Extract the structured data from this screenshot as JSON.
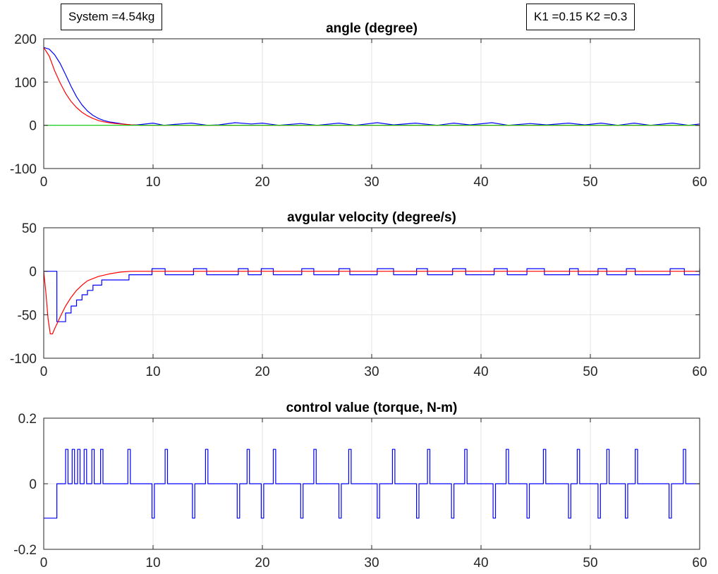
{
  "annotations": {
    "system": "System =4.54kg",
    "gains": "K1 =0.15 K2 =0.3"
  },
  "colors": {
    "blue": "#0000ff",
    "red": "#ff0000",
    "green": "#00cc00",
    "grid": "#e3e3e3"
  },
  "chart_data": [
    {
      "type": "line",
      "title": "angle (degree)",
      "xlim": [
        0,
        60
      ],
      "ylim": [
        -100,
        200
      ],
      "xticks": [
        0,
        10,
        20,
        30,
        40,
        50,
        60
      ],
      "yticks": [
        -100,
        0,
        100,
        200
      ],
      "grid": true,
      "series": [
        {
          "color": "#0000ff",
          "x": [
            0,
            0.5,
            1,
            1.5,
            2,
            2.5,
            3,
            3.5,
            4,
            4.5,
            5,
            5.5,
            6,
            6.5,
            7,
            7.5,
            8,
            8.5,
            9,
            10,
            11,
            12,
            13.5,
            15,
            16,
            17.5,
            19,
            20,
            21.5,
            23.5,
            25,
            27,
            28.5,
            30.5,
            32,
            34,
            36,
            37.5,
            39,
            41,
            42.5,
            44.5,
            46,
            48,
            49.5,
            51,
            52.5,
            54,
            55.5,
            57.5,
            59,
            60
          ],
          "y": [
            180,
            176,
            163,
            143,
            117,
            90,
            66,
            47,
            33,
            23,
            16,
            11,
            8,
            6,
            4,
            2,
            1,
            1,
            2,
            5,
            0,
            2,
            5,
            0,
            1,
            6,
            3,
            5,
            0,
            4,
            0,
            5,
            0,
            6,
            1,
            5,
            0,
            5,
            1,
            6,
            0,
            4,
            1,
            5,
            1,
            5,
            0,
            5,
            0,
            5,
            0,
            3
          ]
        },
        {
          "color": "#ff0000",
          "x": [
            0,
            0.5,
            1,
            1.5,
            2,
            2.5,
            3,
            3.5,
            4,
            4.5,
            5,
            5.5,
            6,
            6.5,
            7,
            7.5,
            8,
            9,
            10,
            60
          ],
          "y": [
            180,
            160,
            126,
            98,
            74,
            55,
            41,
            30,
            22,
            16,
            11,
            8,
            6,
            4,
            3,
            2,
            1,
            0,
            0,
            0
          ]
        },
        {
          "color": "#00cc00",
          "x": [
            0,
            60
          ],
          "y": [
            0,
            0
          ]
        }
      ]
    },
    {
      "type": "line",
      "title": "avgular velocity (degree/s)",
      "xlim": [
        0,
        60
      ],
      "ylim": [
        -100,
        50
      ],
      "xticks": [
        0,
        10,
        20,
        30,
        40,
        50,
        60
      ],
      "yticks": [
        -100,
        -50,
        0,
        50
      ],
      "grid": true,
      "series": [
        {
          "color": "#0000ff",
          "step": true,
          "x": [
            0,
            1.2,
            2.0,
            2.5,
            3.0,
            3.5,
            4.0,
            4.5,
            5.3,
            7.8,
            9.9,
            11.1,
            13.7,
            14.9,
            17.8,
            18.7,
            19.9,
            21.0,
            23.6,
            24.7,
            27.0,
            28.0,
            30.5,
            32.0,
            34.1,
            35.1,
            37.4,
            38.6,
            41.2,
            42.4,
            44.2,
            45.8,
            48.1,
            48.9,
            50.7,
            51.5,
            53.3,
            54.1,
            57.3,
            58.6,
            60
          ],
          "y": [
            0,
            -58,
            -48,
            -40,
            -33,
            -27,
            -22,
            -16,
            -10,
            -4,
            3,
            -4,
            3,
            -4,
            3,
            -4,
            3,
            -4,
            3,
            -4,
            3,
            -4,
            3,
            -4,
            3,
            -4,
            3,
            -4,
            3,
            -4,
            3,
            -4,
            3,
            -4,
            3,
            -4,
            3,
            -4,
            3,
            -4,
            3
          ]
        },
        {
          "color": "#ff0000",
          "x": [
            0,
            0.2,
            0.4,
            0.6,
            0.8,
            1.0,
            1.3,
            1.6,
            2.0,
            2.5,
            3.0,
            3.5,
            4.0,
            5.0,
            6.0,
            7.0,
            8.0,
            10.0,
            60
          ],
          "y": [
            0,
            -25,
            -55,
            -72,
            -72,
            -66,
            -58,
            -50,
            -40,
            -30,
            -22,
            -16,
            -11,
            -6,
            -3,
            -1,
            0,
            0,
            0
          ]
        }
      ]
    },
    {
      "type": "line",
      "title": "control value (torque, N-m)",
      "xlim": [
        0,
        60
      ],
      "ylim": [
        -0.2,
        0.2
      ],
      "xticks": [
        0,
        10,
        20,
        30,
        40,
        50,
        60
      ],
      "yticks": [
        -0.2,
        0,
        0.2
      ],
      "grid": true,
      "series": [
        {
          "color": "#0000ff",
          "step": true,
          "base": [
            [
              0,
              -0.105
            ],
            [
              1.2,
              0
            ]
          ],
          "pulses": [
            [
              2.0,
              0.105
            ],
            [
              2.6,
              0.105
            ],
            [
              3.1,
              0.105
            ],
            [
              3.7,
              0.105
            ],
            [
              4.4,
              0.105
            ],
            [
              5.2,
              0.105
            ],
            [
              7.7,
              0.105
            ],
            [
              9.9,
              -0.105
            ],
            [
              11.1,
              0.105
            ],
            [
              13.6,
              -0.105
            ],
            [
              14.8,
              0.105
            ],
            [
              17.7,
              -0.105
            ],
            [
              18.6,
              0.105
            ],
            [
              19.9,
              -0.105
            ],
            [
              21.0,
              0.105
            ],
            [
              23.5,
              -0.105
            ],
            [
              24.7,
              0.105
            ],
            [
              27.0,
              -0.105
            ],
            [
              27.9,
              0.105
            ],
            [
              30.5,
              -0.105
            ],
            [
              31.9,
              0.105
            ],
            [
              34.1,
              -0.105
            ],
            [
              35.1,
              0.105
            ],
            [
              37.3,
              -0.105
            ],
            [
              38.5,
              0.105
            ],
            [
              41.1,
              -0.105
            ],
            [
              42.3,
              0.105
            ],
            [
              44.2,
              -0.105
            ],
            [
              45.7,
              0.105
            ],
            [
              48.0,
              -0.105
            ],
            [
              48.8,
              0.105
            ],
            [
              50.7,
              -0.105
            ],
            [
              51.5,
              0.105
            ],
            [
              53.2,
              -0.105
            ],
            [
              54.1,
              0.105
            ],
            [
              57.2,
              -0.105
            ],
            [
              58.5,
              0.105
            ]
          ]
        }
      ]
    }
  ]
}
